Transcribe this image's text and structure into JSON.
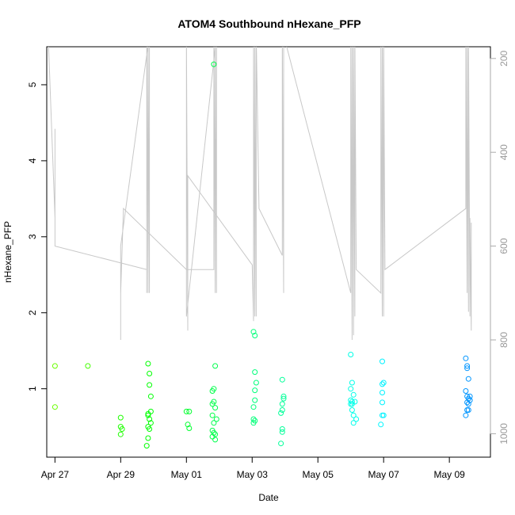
{
  "chart_data": {
    "type": "scatter",
    "title": "ATOM4 Southbound nHexane_PFP",
    "xlabel": "Date",
    "ylabel": "nHexane_PFP",
    "xlim": [
      "2016-04-26T18:00",
      "2016-05-10T06:00"
    ],
    "ylim": [
      0.1,
      5.5
    ],
    "y2lim": [
      1050,
      175
    ],
    "x_ticks": [
      {
        "label": "Apr 27",
        "date": "2016-04-27"
      },
      {
        "label": "Apr 29",
        "date": "2016-04-29"
      },
      {
        "label": "May 01",
        "date": "2016-05-01"
      },
      {
        "label": "May 03",
        "date": "2016-05-03"
      },
      {
        "label": "May 05",
        "date": "2016-05-05"
      },
      {
        "label": "May 07",
        "date": "2016-05-07"
      },
      {
        "label": "May 09",
        "date": "2016-05-09"
      }
    ],
    "y_ticks": [
      1,
      2,
      3,
      4,
      5
    ],
    "y2_ticks": [
      200,
      400,
      600,
      800,
      1000
    ],
    "point_style": "open circle, color gradient green to blue over time",
    "points": [
      [
        "2016-04-27T00:00",
        1.3
      ],
      [
        "2016-04-27T00:00",
        0.76
      ],
      [
        "2016-04-28T00:00",
        1.3
      ],
      [
        "2016-04-29T00:00",
        0.62
      ],
      [
        "2016-04-29T00:00",
        0.5
      ],
      [
        "2016-04-29T00:00",
        0.4
      ],
      [
        "2016-04-29T01:00",
        0.47
      ],
      [
        "2016-04-29T20:00",
        1.33
      ],
      [
        "2016-04-29T20:00",
        0.67
      ],
      [
        "2016-04-29T19:00",
        0.25
      ],
      [
        "2016-04-29T21:00",
        1.2
      ],
      [
        "2016-04-29T21:00",
        1.05
      ],
      [
        "2016-04-29T22:00",
        0.9
      ],
      [
        "2016-04-29T20:00",
        0.65
      ],
      [
        "2016-04-29T21:00",
        0.6
      ],
      [
        "2016-04-29T22:00",
        0.55
      ],
      [
        "2016-04-29T20:00",
        0.5
      ],
      [
        "2016-04-29T21:00",
        0.47
      ],
      [
        "2016-04-29T20:00",
        0.35
      ],
      [
        "2016-04-29T22:00",
        0.7
      ],
      [
        "2016-05-01T00:00",
        0.7
      ],
      [
        "2016-05-01T02:00",
        0.7
      ],
      [
        "2016-05-01T01:00",
        0.53
      ],
      [
        "2016-05-01T02:00",
        0.48
      ],
      [
        "2016-05-01T20:00",
        5.27
      ],
      [
        "2016-05-01T21:00",
        1.3
      ],
      [
        "2016-05-01T20:00",
        1.0
      ],
      [
        "2016-05-01T19:00",
        0.97
      ],
      [
        "2016-05-01T20:00",
        0.83
      ],
      [
        "2016-05-01T19:00",
        0.8
      ],
      [
        "2016-05-01T21:00",
        0.75
      ],
      [
        "2016-05-01T19:00",
        0.65
      ],
      [
        "2016-05-01T20:00",
        0.55
      ],
      [
        "2016-05-01T22:00",
        0.6
      ],
      [
        "2016-05-01T19:00",
        0.45
      ],
      [
        "2016-05-01T20:00",
        0.42
      ],
      [
        "2016-05-01T21:00",
        0.4
      ],
      [
        "2016-05-01T19:00",
        0.37
      ],
      [
        "2016-05-01T21:00",
        0.33
      ],
      [
        "2016-05-03T01:00",
        1.75
      ],
      [
        "2016-05-03T02:00",
        1.7
      ],
      [
        "2016-05-03T02:00",
        1.22
      ],
      [
        "2016-05-03T03:00",
        1.08
      ],
      [
        "2016-05-03T02:00",
        0.98
      ],
      [
        "2016-05-03T02:00",
        0.85
      ],
      [
        "2016-05-03T01:00",
        0.76
      ],
      [
        "2016-05-03T01:00",
        0.6
      ],
      [
        "2016-05-03T02:00",
        0.58
      ],
      [
        "2016-05-03T01:00",
        0.55
      ],
      [
        "2016-05-03T22:00",
        1.12
      ],
      [
        "2016-05-03T23:00",
        0.9
      ],
      [
        "2016-05-03T23:00",
        0.87
      ],
      [
        "2016-05-03T22:00",
        0.8
      ],
      [
        "2016-05-03T22:00",
        0.72
      ],
      [
        "2016-05-03T21:00",
        0.68
      ],
      [
        "2016-05-03T22:00",
        0.47
      ],
      [
        "2016-05-03T22:00",
        0.43
      ],
      [
        "2016-05-03T21:00",
        0.28
      ],
      [
        "2016-05-06T00:00",
        1.45
      ],
      [
        "2016-05-06T01:00",
        1.08
      ],
      [
        "2016-05-06T00:00",
        1.0
      ],
      [
        "2016-05-06T02:00",
        0.92
      ],
      [
        "2016-05-06T00:00",
        0.85
      ],
      [
        "2016-05-06T01:00",
        0.83
      ],
      [
        "2016-05-06T03:00",
        0.83
      ],
      [
        "2016-05-06T01:00",
        0.8
      ],
      [
        "2016-05-06T00:00",
        0.8
      ],
      [
        "2016-05-06T01:00",
        0.72
      ],
      [
        "2016-05-06T02:00",
        0.65
      ],
      [
        "2016-05-06T04:00",
        0.6
      ],
      [
        "2016-05-06T02:00",
        0.55
      ],
      [
        "2016-05-06T23:00",
        1.36
      ],
      [
        "2016-05-07T00:00",
        1.08
      ],
      [
        "2016-05-06T23:00",
        1.06
      ],
      [
        "2016-05-06T23:00",
        0.95
      ],
      [
        "2016-05-06T23:00",
        0.82
      ],
      [
        "2016-05-07T00:00",
        0.65
      ],
      [
        "2016-05-06T23:00",
        0.65
      ],
      [
        "2016-05-06T22:00",
        0.53
      ],
      [
        "2016-05-09T12:00",
        1.4
      ],
      [
        "2016-05-09T13:00",
        1.3
      ],
      [
        "2016-05-09T13:00",
        1.27
      ],
      [
        "2016-05-09T14:00",
        1.13
      ],
      [
        "2016-05-09T12:00",
        0.97
      ],
      [
        "2016-05-09T13:00",
        0.9
      ],
      [
        "2016-05-09T15:00",
        0.9
      ],
      [
        "2016-05-09T14:00",
        0.87
      ],
      [
        "2016-05-09T15:00",
        0.85
      ],
      [
        "2016-05-09T13:00",
        0.82
      ],
      [
        "2016-05-09T14:00",
        0.8
      ],
      [
        "2016-05-09T13:00",
        0.72
      ],
      [
        "2016-05-09T14:00",
        0.72
      ],
      [
        "2016-05-09T12:00",
        0.65
      ]
    ],
    "trace_color": "#c8c8c8",
    "trace_right_axis": [
      [
        "2016-04-26T18:00",
        70
      ],
      [
        "2016-04-27T00:00",
        540
      ],
      [
        "2016-04-27T00:00",
        350
      ],
      [
        "2016-04-27T00:00",
        600
      ],
      [
        "2016-04-29T19:00",
        650
      ],
      [
        "2016-04-29T19:00",
        150
      ],
      [
        "2016-04-29T19:00",
        700
      ],
      [
        "2016-04-29T19:00",
        150
      ],
      [
        "2016-04-29T20:00",
        700
      ],
      [
        "2016-04-29T20:00",
        150
      ],
      [
        "2016-04-29T21:00",
        700
      ],
      [
        "2016-04-29T21:00",
        150
      ],
      [
        "2016-04-29T00:00",
        600
      ],
      [
        "2016-04-29T00:00",
        800
      ],
      [
        "2016-04-29T00:00",
        700
      ],
      [
        "2016-04-29T02:00",
        520
      ],
      [
        "2016-05-01T00:00",
        650
      ],
      [
        "2016-05-01T20:00",
        650
      ],
      [
        "2016-05-01T20:00",
        150
      ],
      [
        "2016-05-01T21:00",
        700
      ],
      [
        "2016-05-01T21:00",
        150
      ],
      [
        "2016-05-01T22:00",
        700
      ],
      [
        "2016-05-01T22:00",
        150
      ],
      [
        "2016-05-01T00:00",
        750
      ],
      [
        "2016-05-01T00:00",
        150
      ],
      [
        "2016-05-01T01:00",
        780
      ],
      [
        "2016-05-01T01:00",
        450
      ],
      [
        "2016-05-03T00:00",
        640
      ],
      [
        "2016-05-03T01:00",
        760
      ],
      [
        "2016-05-03T01:00",
        150
      ],
      [
        "2016-05-03T02:00",
        750
      ],
      [
        "2016-05-03T02:00",
        150
      ],
      [
        "2016-05-03T03:00",
        750
      ],
      [
        "2016-05-03T03:00",
        150
      ],
      [
        "2016-05-03T05:00",
        520
      ],
      [
        "2016-05-03T22:00",
        620
      ],
      [
        "2016-05-03T22:00",
        150
      ],
      [
        "2016-05-03T23:00",
        700
      ],
      [
        "2016-05-03T23:00",
        150
      ],
      [
        "2016-05-06T00:00",
        700
      ],
      [
        "2016-05-06T00:00",
        150
      ],
      [
        "2016-05-06T01:00",
        800
      ],
      [
        "2016-05-06T01:00",
        150
      ],
      [
        "2016-05-06T02:00",
        790
      ],
      [
        "2016-05-06T02:00",
        150
      ],
      [
        "2016-05-06T03:00",
        750
      ],
      [
        "2016-05-06T03:00",
        150
      ],
      [
        "2016-05-06T04:00",
        650
      ],
      [
        "2016-05-06T22:00",
        700
      ],
      [
        "2016-05-06T22:00",
        150
      ],
      [
        "2016-05-06T23:00",
        750
      ],
      [
        "2016-05-06T23:00",
        150
      ],
      [
        "2016-05-07T00:00",
        750
      ],
      [
        "2016-05-07T00:00",
        150
      ],
      [
        "2016-05-07T01:00",
        650
      ],
      [
        "2016-05-09T12:00",
        520
      ],
      [
        "2016-05-09T12:00",
        150
      ],
      [
        "2016-05-09T13:00",
        700
      ],
      [
        "2016-05-09T13:00",
        150
      ],
      [
        "2016-05-09T14:00",
        740
      ],
      [
        "2016-05-09T14:00",
        150
      ],
      [
        "2016-05-09T15:00",
        750
      ],
      [
        "2016-05-09T15:00",
        540
      ],
      [
        "2016-05-09T16:00",
        780
      ],
      [
        "2016-05-09T16:00",
        550
      ]
    ]
  }
}
